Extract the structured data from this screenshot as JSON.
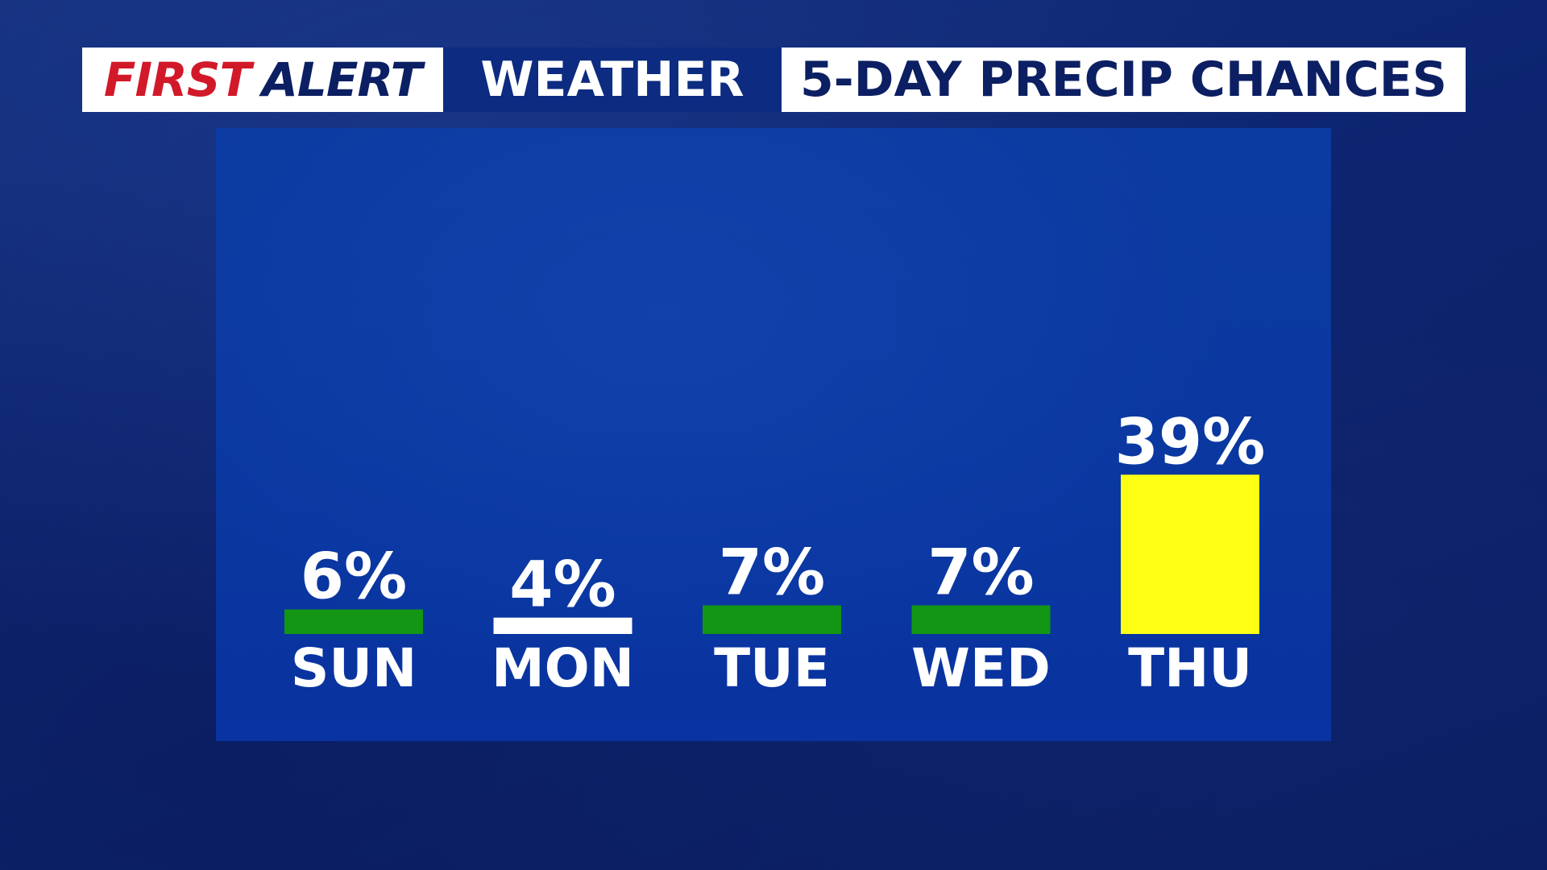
{
  "header": {
    "brand_first": "FIRST",
    "brand_alert": "ALERT",
    "weather": "WEATHER",
    "title": "5-DAY PRECIP CHANCES"
  },
  "colors": {
    "brand_red": "#d1192a",
    "navy": "#0c1f63",
    "panel_blue": "#0a38a0",
    "low_green": "#139613",
    "neutral_white": "#ffffff",
    "high_yellow": "#ffff14"
  },
  "chart_data": {
    "type": "bar",
    "title": "5-DAY PRECIP CHANCES",
    "categories": [
      "SUN",
      "MON",
      "TUE",
      "WED",
      "THU"
    ],
    "values": [
      6,
      4,
      7,
      7,
      39
    ],
    "value_labels": [
      "6%",
      "4%",
      "7%",
      "7%",
      "39%"
    ],
    "bar_colors": [
      "#139613",
      "#ffffff",
      "#139613",
      "#139613",
      "#ffff14"
    ],
    "unit": "%",
    "xlabel": "",
    "ylabel": "",
    "grid": false
  }
}
